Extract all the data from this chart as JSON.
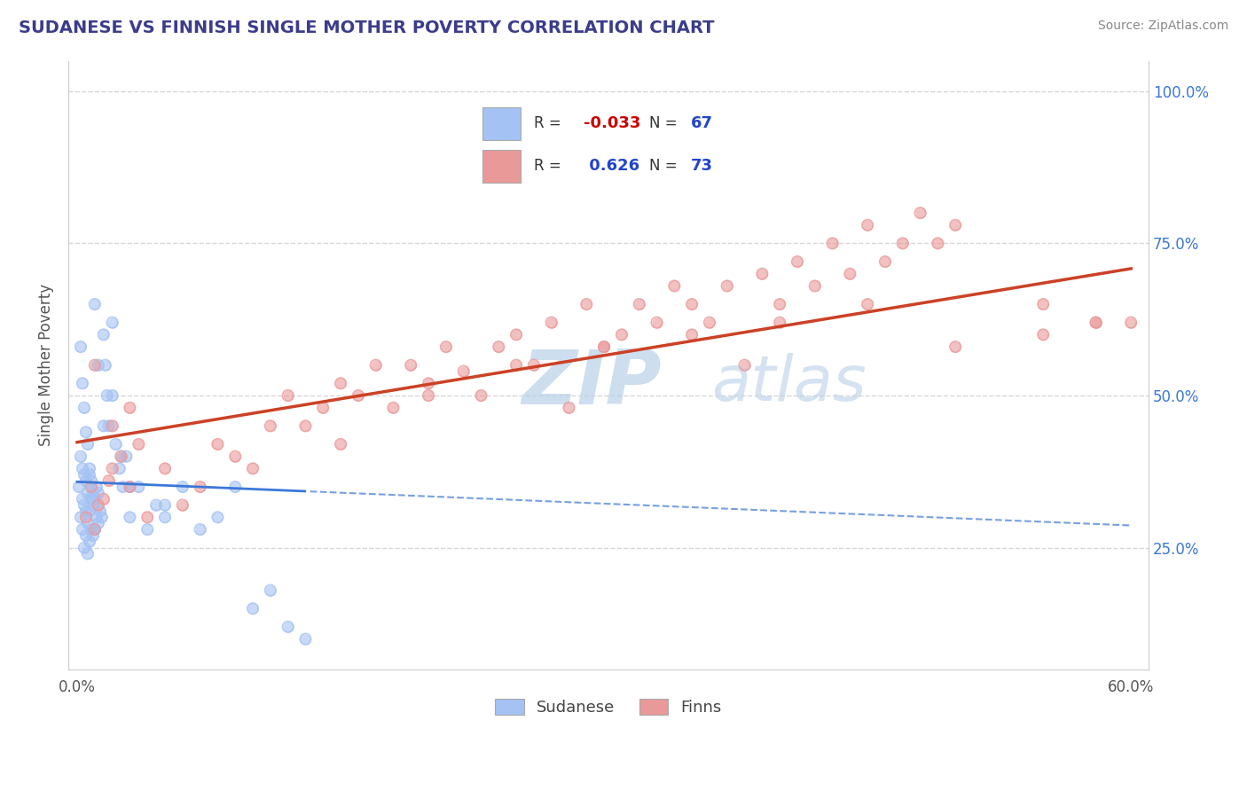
{
  "title": "SUDANESE VS FINNISH SINGLE MOTHER POVERTY CORRELATION CHART",
  "source": "Source: ZipAtlas.com",
  "ylabel": "Single Mother Poverty",
  "y_ticks_right": [
    0.25,
    0.5,
    0.75,
    1.0
  ],
  "y_tick_labels_right": [
    "25.0%",
    "50.0%",
    "75.0%",
    "100.0%"
  ],
  "legend_labels": [
    "Sudanese",
    "Finns"
  ],
  "blue_color": "#a4c2f4",
  "pink_color": "#ea9999",
  "blue_line_color": "#3c78d8",
  "pink_line_color": "#cc4125",
  "watermark_color": "#cde4f5",
  "background_color": "#ffffff",
  "sudanese_x": [
    0.001,
    0.002,
    0.002,
    0.003,
    0.003,
    0.003,
    0.004,
    0.004,
    0.004,
    0.005,
    0.005,
    0.005,
    0.006,
    0.006,
    0.006,
    0.007,
    0.007,
    0.007,
    0.008,
    0.008,
    0.009,
    0.009,
    0.01,
    0.01,
    0.011,
    0.011,
    0.012,
    0.012,
    0.013,
    0.014,
    0.015,
    0.016,
    0.017,
    0.018,
    0.02,
    0.022,
    0.024,
    0.026,
    0.028,
    0.03,
    0.035,
    0.04,
    0.045,
    0.05,
    0.06,
    0.07,
    0.08,
    0.09,
    0.1,
    0.11,
    0.12,
    0.13,
    0.002,
    0.003,
    0.004,
    0.005,
    0.006,
    0.007,
    0.008,
    0.009,
    0.01,
    0.012,
    0.015,
    0.02,
    0.025,
    0.03,
    0.05
  ],
  "sudanese_y": [
    0.35,
    0.3,
    0.4,
    0.28,
    0.33,
    0.38,
    0.25,
    0.32,
    0.37,
    0.27,
    0.31,
    0.36,
    0.24,
    0.29,
    0.34,
    0.26,
    0.31,
    0.37,
    0.28,
    0.33,
    0.27,
    0.32,
    0.28,
    0.33,
    0.3,
    0.35,
    0.29,
    0.34,
    0.31,
    0.3,
    0.6,
    0.55,
    0.5,
    0.45,
    0.62,
    0.42,
    0.38,
    0.35,
    0.4,
    0.3,
    0.35,
    0.28,
    0.32,
    0.3,
    0.35,
    0.28,
    0.3,
    0.35,
    0.15,
    0.18,
    0.12,
    0.1,
    0.58,
    0.52,
    0.48,
    0.44,
    0.42,
    0.38,
    0.36,
    0.34,
    0.65,
    0.55,
    0.45,
    0.5,
    0.4,
    0.35,
    0.32
  ],
  "finns_x": [
    0.005,
    0.008,
    0.01,
    0.012,
    0.015,
    0.018,
    0.02,
    0.025,
    0.03,
    0.035,
    0.04,
    0.05,
    0.06,
    0.07,
    0.08,
    0.09,
    0.1,
    0.11,
    0.12,
    0.13,
    0.14,
    0.15,
    0.16,
    0.17,
    0.18,
    0.19,
    0.2,
    0.21,
    0.22,
    0.23,
    0.24,
    0.25,
    0.26,
    0.27,
    0.28,
    0.29,
    0.3,
    0.31,
    0.32,
    0.33,
    0.34,
    0.35,
    0.36,
    0.37,
    0.38,
    0.39,
    0.4,
    0.41,
    0.42,
    0.43,
    0.44,
    0.45,
    0.46,
    0.47,
    0.48,
    0.49,
    0.5,
    0.55,
    0.58,
    0.01,
    0.02,
    0.03,
    0.15,
    0.2,
    0.25,
    0.3,
    0.35,
    0.4,
    0.45,
    0.5,
    0.55,
    0.58,
    0.6
  ],
  "finns_y": [
    0.3,
    0.35,
    0.28,
    0.32,
    0.33,
    0.36,
    0.38,
    0.4,
    0.35,
    0.42,
    0.3,
    0.38,
    0.32,
    0.35,
    0.42,
    0.4,
    0.38,
    0.45,
    0.5,
    0.45,
    0.48,
    0.52,
    0.5,
    0.55,
    0.48,
    0.55,
    0.52,
    0.58,
    0.54,
    0.5,
    0.58,
    0.6,
    0.55,
    0.62,
    0.48,
    0.65,
    0.58,
    0.6,
    0.65,
    0.62,
    0.68,
    0.65,
    0.62,
    0.68,
    0.55,
    0.7,
    0.65,
    0.72,
    0.68,
    0.75,
    0.7,
    0.78,
    0.72,
    0.75,
    0.8,
    0.75,
    0.78,
    0.6,
    0.62,
    0.55,
    0.45,
    0.48,
    0.42,
    0.5,
    0.55,
    0.58,
    0.6,
    0.62,
    0.65,
    0.58,
    0.65,
    0.62,
    0.62
  ],
  "ylim": [
    0.05,
    1.05
  ],
  "xlim": [
    -0.005,
    0.61
  ]
}
